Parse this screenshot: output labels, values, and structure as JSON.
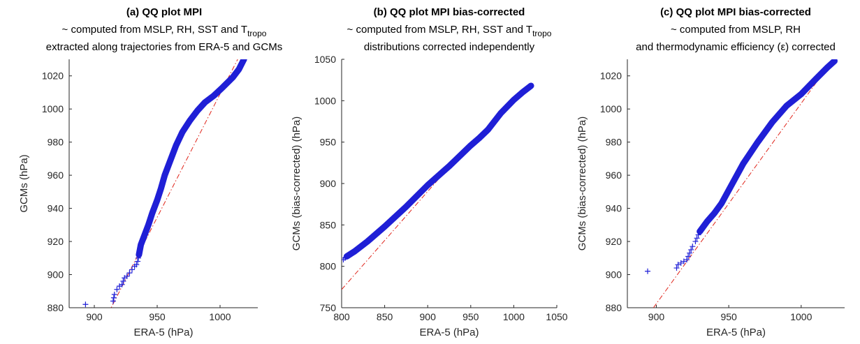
{
  "colors": {
    "data": "#1f1fd6",
    "reference": "#e0251b",
    "axis": "#262626"
  },
  "chart_data": [
    {
      "type": "scatter",
      "title": "(a) QQ plot MPI",
      "subtitle_prefix": "~ computed from MSLP, RH, SST and T",
      "subtitle_sub": "tropo",
      "subtitle2": "extracted along trajectories from ERA-5 and GCMs",
      "xlabel": "ERA-5 (hPa)",
      "ylabel": "GCMs (hPa)",
      "xlim": [
        880,
        1030
      ],
      "ylim": [
        880,
        1030
      ],
      "xticks": [
        900,
        950,
        1000
      ],
      "yticks": [
        880,
        900,
        920,
        940,
        960,
        980,
        1000,
        1020
      ],
      "marker": "plus",
      "reference_line": [
        [
          900,
          860
        ],
        [
          1014,
          1030
        ]
      ],
      "points": [
        [
          893,
          882
        ],
        [
          915,
          884
        ],
        [
          915.5,
          886
        ],
        [
          916,
          888
        ],
        [
          918,
          891
        ],
        [
          920,
          893
        ],
        [
          922,
          894
        ],
        [
          923,
          896
        ],
        [
          924,
          898
        ],
        [
          926,
          899
        ],
        [
          928,
          901
        ],
        [
          930,
          903
        ],
        [
          932,
          905
        ],
        [
          933.5,
          906
        ],
        [
          934.5,
          908
        ],
        [
          935,
          910
        ],
        [
          935.5,
          912
        ]
      ],
      "curve": [
        [
          935.5,
          912
        ],
        [
          937,
          918
        ],
        [
          940,
          924
        ],
        [
          943,
          930
        ],
        [
          946,
          937
        ],
        [
          950,
          945
        ],
        [
          953,
          952
        ],
        [
          956,
          960
        ],
        [
          960,
          968
        ],
        [
          965,
          978
        ],
        [
          970,
          986
        ],
        [
          976,
          993
        ],
        [
          982,
          999
        ],
        [
          988,
          1004
        ],
        [
          995,
          1008
        ],
        [
          1002,
          1013
        ],
        [
          1010,
          1019
        ],
        [
          1015,
          1024
        ],
        [
          1019,
          1030
        ]
      ]
    },
    {
      "type": "scatter",
      "title": "(b) QQ plot MPI bias-corrected",
      "subtitle_prefix": "~ computed from MSLP, RH, SST and T",
      "subtitle_sub": "tropo",
      "subtitle2": "distributions corrected independently",
      "xlabel": "ERA-5 (hPa)",
      "ylabel": "GCMs (bias-corrected) (hPa)",
      "xlim": [
        800,
        1050
      ],
      "ylim": [
        750,
        1050
      ],
      "xticks": [
        800,
        850,
        900,
        950,
        1000,
        1050
      ],
      "yticks": [
        750,
        800,
        850,
        900,
        950,
        1000,
        1050
      ],
      "marker": "plus",
      "reference_line": [
        [
          800,
          772
        ],
        [
          952,
          952
        ]
      ],
      "points": [
        [
          802,
          808
        ],
        [
          804,
          810
        ],
        [
          806,
          812
        ]
      ],
      "curve": [
        [
          806,
          812
        ],
        [
          815,
          818
        ],
        [
          830,
          830
        ],
        [
          850,
          848
        ],
        [
          875,
          872
        ],
        [
          900,
          898
        ],
        [
          925,
          921
        ],
        [
          950,
          946
        ],
        [
          960,
          955
        ],
        [
          970,
          965
        ],
        [
          985,
          985
        ],
        [
          1000,
          1001
        ],
        [
          1010,
          1010
        ],
        [
          1020,
          1018
        ]
      ]
    },
    {
      "type": "scatter",
      "title": "(c) QQ plot MPI bias-corrected",
      "subtitle_prefix": "~ computed from MSLP, RH",
      "subtitle_sub": "",
      "subtitle2": "and thermodynamic efficiency (ε) corrected",
      "xlabel": "ERA-5 (hPa)",
      "ylabel": "GCMs (bias-corrected) (hPa)",
      "xlim": [
        880,
        1030
      ],
      "ylim": [
        880,
        1030
      ],
      "xticks": [
        900,
        950,
        1000
      ],
      "yticks": [
        880,
        900,
        920,
        940,
        960,
        980,
        1000,
        1020
      ],
      "marker": "plus",
      "reference_line": [
        [
          898,
          880
        ],
        [
          1022,
          1030
        ]
      ],
      "points": [
        [
          894,
          902
        ],
        [
          914,
          904
        ],
        [
          915,
          906
        ],
        [
          917,
          907
        ],
        [
          919,
          908
        ],
        [
          921,
          909
        ],
        [
          922,
          911
        ],
        [
          923,
          913
        ],
        [
          924,
          915
        ],
        [
          925,
          917
        ],
        [
          927,
          920
        ],
        [
          928,
          922
        ],
        [
          929,
          924
        ],
        [
          930,
          926
        ]
      ],
      "curve": [
        [
          930,
          926
        ],
        [
          935,
          932
        ],
        [
          940,
          937
        ],
        [
          945,
          943
        ],
        [
          950,
          951
        ],
        [
          955,
          959
        ],
        [
          960,
          967
        ],
        [
          970,
          980
        ],
        [
          980,
          992
        ],
        [
          990,
          1002
        ],
        [
          1000,
          1009
        ],
        [
          1010,
          1018
        ],
        [
          1018,
          1025
        ],
        [
          1023,
          1029
        ]
      ]
    }
  ]
}
